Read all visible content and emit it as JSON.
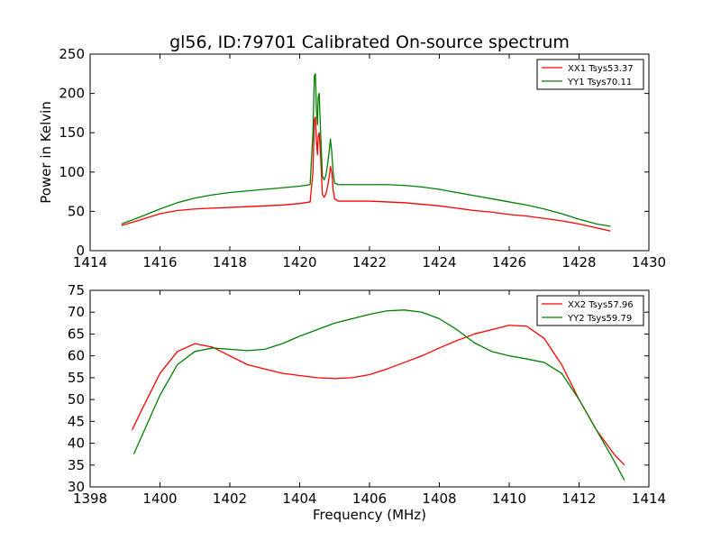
{
  "chart_data": [
    {
      "type": "line",
      "title": "gl56, ID:79701 Calibrated On-source spectrum",
      "xlabel": "",
      "ylabel": "Power in Kelvin",
      "xlim": [
        1414,
        1430
      ],
      "ylim": [
        0,
        250
      ],
      "xticks": [
        "1414",
        "1416",
        "1418",
        "1420",
        "1422",
        "1424",
        "1426",
        "1428",
        "1430"
      ],
      "yticks": [
        "0",
        "50",
        "100",
        "150",
        "200",
        "250"
      ],
      "grid": false,
      "legend_position": "top-right",
      "series": [
        {
          "name": "XX1 Tsys53.37",
          "color": "#ff0000",
          "x": [
            1414.9,
            1415.5,
            1416.0,
            1416.5,
            1417.0,
            1417.5,
            1418.0,
            1418.5,
            1419.0,
            1419.5,
            1420.0,
            1420.3,
            1420.38,
            1420.42,
            1420.45,
            1420.48,
            1420.51,
            1420.53,
            1420.56,
            1420.6,
            1420.65,
            1420.7,
            1420.75,
            1420.8,
            1420.85,
            1420.88,
            1420.92,
            1420.96,
            1421.0,
            1421.1,
            1421.5,
            1422.0,
            1422.5,
            1423.0,
            1423.5,
            1424.0,
            1424.5,
            1425.0,
            1425.5,
            1426.0,
            1426.5,
            1427.0,
            1427.5,
            1428.0,
            1428.5,
            1428.9
          ],
          "y": [
            32,
            40,
            47,
            51,
            53,
            54,
            55,
            56,
            57,
            58,
            60,
            62,
            100,
            166,
            170,
            140,
            122,
            145,
            150,
            120,
            72,
            68,
            72,
            82,
            95,
            107,
            99,
            77,
            66,
            63,
            63,
            63,
            62,
            61,
            59,
            57,
            54,
            51,
            49,
            46,
            44,
            41,
            38,
            34,
            29,
            25
          ]
        },
        {
          "name": "YY1 Tsys70.11",
          "color": "#008000",
          "x": [
            1414.9,
            1415.5,
            1416.0,
            1416.5,
            1417.0,
            1417.5,
            1418.0,
            1418.5,
            1419.0,
            1419.5,
            1420.0,
            1420.3,
            1420.38,
            1420.42,
            1420.45,
            1420.48,
            1420.51,
            1420.53,
            1420.56,
            1420.6,
            1420.65,
            1420.7,
            1420.75,
            1420.8,
            1420.85,
            1420.88,
            1420.92,
            1420.96,
            1421.0,
            1421.1,
            1421.5,
            1422.0,
            1422.5,
            1423.0,
            1423.5,
            1424.0,
            1424.5,
            1425.0,
            1425.5,
            1426.0,
            1426.5,
            1427.0,
            1427.5,
            1428.0,
            1428.5,
            1428.9
          ],
          "y": [
            34,
            44,
            53,
            61,
            67,
            71,
            74,
            76,
            78,
            80,
            82,
            84,
            150,
            222,
            225,
            180,
            160,
            195,
            200,
            150,
            95,
            90,
            95,
            110,
            128,
            142,
            125,
            98,
            86,
            84,
            84,
            84,
            84,
            83,
            81,
            78,
            74,
            70,
            66,
            62,
            58,
            53,
            47,
            40,
            34,
            31
          ]
        }
      ]
    },
    {
      "type": "line",
      "title": "",
      "xlabel": "Frequency (MHz)",
      "ylabel": "",
      "xlim": [
        1398,
        1414
      ],
      "ylim": [
        30,
        75
      ],
      "xticks": [
        "1398",
        "1400",
        "1402",
        "1404",
        "1406",
        "1408",
        "1410",
        "1412",
        "1414"
      ],
      "yticks": [
        "30",
        "35",
        "40",
        "45",
        "50",
        "55",
        "60",
        "65",
        "70",
        "75"
      ],
      "grid": false,
      "legend_position": "top-right",
      "series": [
        {
          "name": "XX2 Tsys57.96",
          "color": "#ff0000",
          "x": [
            1399.2,
            1399.5,
            1400.0,
            1400.5,
            1401.0,
            1401.5,
            1402.0,
            1402.5,
            1403.0,
            1403.5,
            1404.0,
            1404.5,
            1405.0,
            1405.5,
            1406.0,
            1406.5,
            1407.0,
            1407.5,
            1408.0,
            1408.5,
            1409.0,
            1409.5,
            1410.0,
            1410.5,
            1411.0,
            1411.5,
            1412.0,
            1412.5,
            1413.0,
            1413.3
          ],
          "y": [
            43,
            48,
            56,
            61,
            62.8,
            62,
            60,
            58,
            57,
            56,
            55.5,
            55,
            54.8,
            55,
            55.7,
            57,
            58.5,
            60,
            61.8,
            63.5,
            65,
            66,
            67,
            66.8,
            64,
            58,
            50,
            43,
            37.5,
            35
          ]
        },
        {
          "name": "YY2 Tsys59.79",
          "color": "#008000",
          "x": [
            1399.25,
            1399.5,
            1400.0,
            1400.5,
            1401.0,
            1401.5,
            1402.0,
            1402.5,
            1403.0,
            1403.5,
            1404.0,
            1404.5,
            1405.0,
            1405.5,
            1406.0,
            1406.5,
            1407.0,
            1407.5,
            1408.0,
            1408.5,
            1409.0,
            1409.5,
            1410.0,
            1410.5,
            1411.0,
            1411.5,
            1412.0,
            1412.5,
            1413.0,
            1413.3
          ],
          "y": [
            37.5,
            42,
            51,
            58,
            61,
            61.8,
            61.5,
            61.2,
            61.5,
            62.8,
            64.5,
            66,
            67.5,
            68.5,
            69.5,
            70.3,
            70.5,
            70,
            68.5,
            66,
            63,
            61,
            60,
            59.3,
            58.5,
            56,
            50,
            43,
            36,
            31.5
          ]
        }
      ]
    }
  ]
}
